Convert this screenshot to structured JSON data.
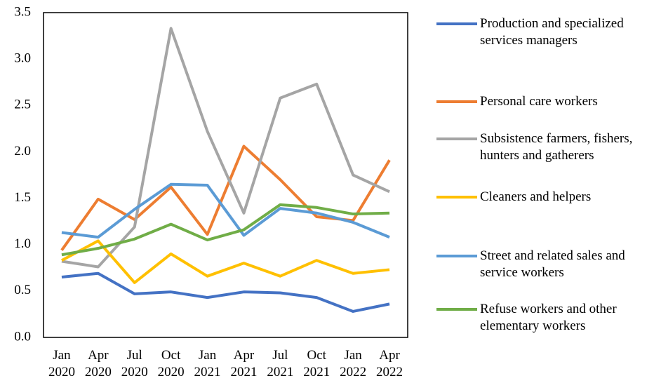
{
  "chart_data": {
    "type": "line",
    "categories": [
      "Jan 2020",
      "Apr 2020",
      "Jul 2020",
      "Oct 2020",
      "Jan 2021",
      "Apr 2021",
      "Jul 2021",
      "Oct 2021",
      "Jan 2022",
      "Apr 2022"
    ],
    "series": [
      {
        "name": "Production and specialized services managers",
        "color": "#4472c4",
        "values": [
          0.65,
          0.69,
          0.47,
          0.49,
          0.43,
          0.49,
          0.48,
          0.43,
          0.28,
          0.36
        ]
      },
      {
        "name": "Personal care workers",
        "color": "#ed7d31",
        "values": [
          0.94,
          1.49,
          1.27,
          1.62,
          1.11,
          2.06,
          1.7,
          1.3,
          1.26,
          1.91
        ]
      },
      {
        "name": "Subsistence farmers, fishers, hunters and gatherers",
        "color": "#a5a5a5",
        "values": [
          0.82,
          0.76,
          1.19,
          3.33,
          2.22,
          1.34,
          2.58,
          2.73,
          1.75,
          1.57
        ]
      },
      {
        "name": "Cleaners and helpers",
        "color": "#ffc000",
        "values": [
          0.83,
          1.04,
          0.59,
          0.9,
          0.66,
          0.8,
          0.66,
          0.83,
          0.69,
          0.73
        ]
      },
      {
        "name": "Street and related sales and service workers",
        "color": "#5b9bd5",
        "values": [
          1.13,
          1.08,
          1.38,
          1.65,
          1.64,
          1.1,
          1.39,
          1.34,
          1.24,
          1.08
        ]
      },
      {
        "name": "Refuse workers and other elementary workers",
        "color": "#70ad47",
        "values": [
          0.89,
          0.96,
          1.06,
          1.22,
          1.05,
          1.16,
          1.43,
          1.4,
          1.33,
          1.34
        ]
      }
    ],
    "ylim": [
      0,
      3.5
    ],
    "yticks": [
      {
        "value": 0,
        "label": "0.0"
      },
      0.5,
      {
        "value": 1,
        "label": "1.0"
      },
      1.5,
      {
        "value": 2,
        "label": "2.0"
      },
      2.5,
      {
        "value": 3,
        "label": "3.0"
      },
      3.5
    ],
    "grid": false,
    "legend": "right"
  }
}
